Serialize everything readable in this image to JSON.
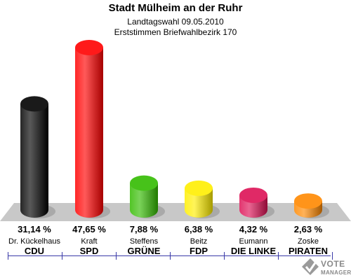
{
  "header": {
    "title": "Stadt Mülheim an der Ruhr",
    "subtitle1": "Landtagswahl 09.05.2010",
    "subtitle2": "Erststimmen Briefwahlbezirk 170"
  },
  "chart_data": {
    "type": "bar",
    "title": "Stadt Mülheim an der Ruhr",
    "subtitle": [
      "Landtagswahl 09.05.2010",
      "Erststimmen Briefwahlbezirk 170"
    ],
    "categories": [
      "CDU",
      "SPD",
      "GRÜNE",
      "FDP",
      "DIE LINKE",
      "PIRATEN"
    ],
    "candidates": [
      "Dr. Kückelhaus",
      "Kraft",
      "Steffens",
      "Beitz",
      "Eumann",
      "Zoske"
    ],
    "values": [
      31.14,
      47.65,
      7.88,
      6.38,
      4.32,
      2.63
    ],
    "value_labels": [
      "31,14 %",
      "47,65 %",
      "7,88 %",
      "6,38 %",
      "4,32 %",
      "2,63 %"
    ],
    "colors": [
      "#000000",
      "#ff0000",
      "#33bb00",
      "#ffee00",
      "#dd1155",
      "#ff8800"
    ],
    "unit": "%",
    "grid": false,
    "legend": "none"
  },
  "logo": {
    "line1": "VOTE",
    "line2": "MANAGER"
  }
}
